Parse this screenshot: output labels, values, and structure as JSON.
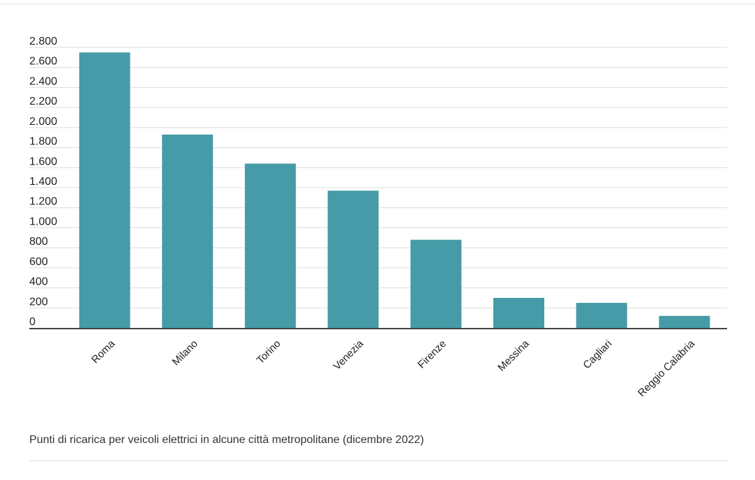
{
  "chart_data": {
    "type": "bar",
    "categories": [
      "Roma",
      "Milano",
      "Torino",
      "Venezia",
      "Firenze",
      "Messina",
      "Cagliari",
      "Reggio Calabria"
    ],
    "values": [
      2750,
      1930,
      1640,
      1370,
      880,
      300,
      250,
      120
    ],
    "title": "",
    "xlabel": "",
    "ylabel": "",
    "ylim": [
      0,
      2800
    ],
    "yticks": [
      0,
      200,
      400,
      600,
      800,
      1000,
      1200,
      1400,
      1600,
      1800,
      2000,
      2200,
      2400,
      2600,
      2800
    ],
    "ytick_labels": [
      "0",
      "200",
      "400",
      "600",
      "800",
      "1.000",
      "1.200",
      "1.400",
      "1.600",
      "1.800",
      "2.000",
      "2.200",
      "2.400",
      "2.600",
      "2.800"
    ],
    "grid": true,
    "legend": "none",
    "bar_color": "#459ba7"
  },
  "caption": "Punti di ricarica per veicoli elettrici in alcune città metropolitane (dicembre 2022)"
}
